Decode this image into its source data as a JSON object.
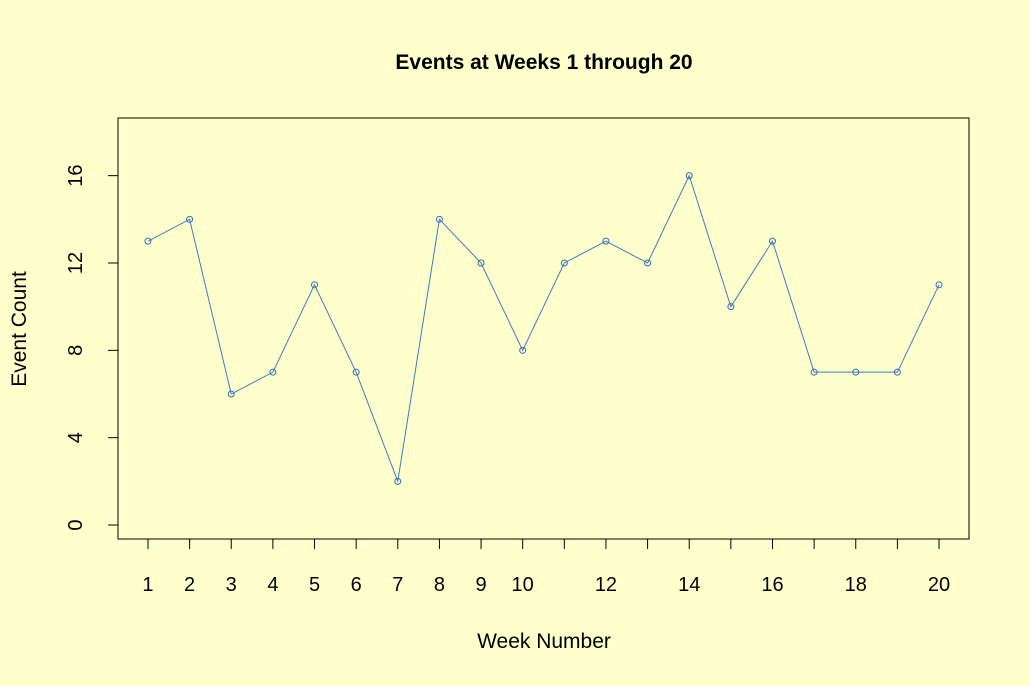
{
  "colors": {
    "background": "#ffffcc",
    "series": "#3a7dc9",
    "frame": "#000000"
  },
  "chart_data": {
    "type": "line",
    "title": "Events at Weeks 1 through 20",
    "xlabel": "Week Number",
    "ylabel": "Event Count",
    "x": [
      1,
      2,
      3,
      4,
      5,
      6,
      7,
      8,
      9,
      10,
      11,
      12,
      13,
      14,
      15,
      16,
      17,
      18,
      19,
      20
    ],
    "series": [
      {
        "values": [
          13,
          14,
          6,
          7,
          11,
          7,
          2,
          14,
          12,
          8,
          12,
          13,
          12,
          16,
          10,
          13,
          7,
          7,
          7,
          11
        ]
      }
    ],
    "x_ticks": [
      1,
      2,
      3,
      4,
      5,
      6,
      7,
      8,
      9,
      10,
      11,
      12,
      13,
      14,
      15,
      16,
      17,
      18,
      19,
      20
    ],
    "x_tick_labels": [
      "1",
      "2",
      "3",
      "4",
      "5",
      "6",
      "7",
      "8",
      "9",
      "10",
      "",
      "12",
      "",
      "14",
      "",
      "16",
      "",
      "18",
      "",
      "20"
    ],
    "y_ticks": [
      0,
      4,
      8,
      12,
      16
    ],
    "y_tick_labels": [
      "0",
      "4",
      "8",
      "12",
      "16"
    ],
    "xlim": [
      0.28,
      20.72
    ],
    "ylim": [
      -0.64,
      18.64
    ],
    "markers": "open-circle",
    "grid": false,
    "legend": "none"
  }
}
